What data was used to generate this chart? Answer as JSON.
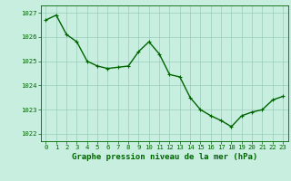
{
  "x": [
    0,
    1,
    2,
    3,
    4,
    5,
    6,
    7,
    8,
    9,
    10,
    11,
    12,
    13,
    14,
    15,
    16,
    17,
    18,
    19,
    20,
    21,
    22,
    23
  ],
  "y": [
    1026.7,
    1026.9,
    1026.1,
    1025.8,
    1025.0,
    1024.8,
    1024.7,
    1024.75,
    1024.8,
    1025.4,
    1025.8,
    1025.3,
    1024.45,
    1024.35,
    1023.5,
    1023.0,
    1022.75,
    1022.55,
    1022.3,
    1022.75,
    1022.9,
    1023.0,
    1023.4,
    1023.55
  ],
  "line_color": "#006400",
  "marker_color": "#006400",
  "bg_color": "#c8eee0",
  "grid_color_v": "#99ccbb",
  "grid_color_h": "#99ccbb",
  "axis_color": "#006400",
  "xlabel": "Graphe pression niveau de la mer (hPa)",
  "xlabel_color": "#006400",
  "ylim": [
    1021.7,
    1027.3
  ],
  "xlim": [
    -0.5,
    23.5
  ],
  "yticks": [
    1022,
    1023,
    1024,
    1025,
    1026,
    1027
  ],
  "xticks": [
    0,
    1,
    2,
    3,
    4,
    5,
    6,
    7,
    8,
    9,
    10,
    11,
    12,
    13,
    14,
    15,
    16,
    17,
    18,
    19,
    20,
    21,
    22,
    23
  ],
  "tick_color": "#006400",
  "tick_fontsize": 5.2,
  "xlabel_fontsize": 6.5,
  "marker_size": 2.5,
  "line_width": 1.0
}
